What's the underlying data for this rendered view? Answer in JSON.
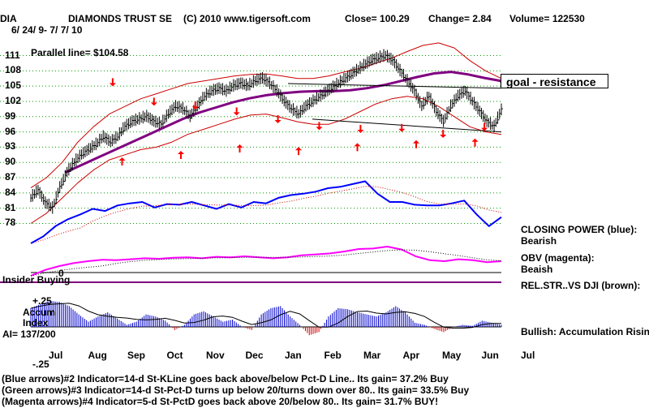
{
  "header": {
    "symbol": "DIA",
    "name": "DIAMONDS TRUST SE",
    "site": "(C) 2010 www.tigersoft.com",
    "close_label": "Close=",
    "close": "100.29",
    "change_label": "Change=",
    "change": "2.84",
    "volume_label": "Volume=",
    "volume": "122530",
    "date_range": "6/ 24/ 9- 7/ 7/ 10"
  },
  "parallel_line": "Parallel line= $104.58",
  "goal_label": "goal - resistance",
  "panel_labels": {
    "closing_power": "CLOSING POWER (blue):",
    "closing_power_state": "Bearish",
    "obv": "OBV (magenta):",
    "obv_state": "Beaish",
    "relstr": "REL.STR..VS DJI (brown):",
    "insider": "Insider Buying",
    "zero": "0",
    "accum_plus": "+.25",
    "accum_title1": "Accum",
    "accum_title2": "Index",
    "ai_value": "AI= 137/200",
    "accum_minus": "-.25",
    "bullish": "Bullish: Accumulation Rising"
  },
  "footer": [
    "(Blue arrows)#2 Indicator=14-d St-KLine goes back above/below Pct-D Line.. Its gain= 37.2% Buy",
    "(Green arrows)#3 Indicator=14-d St-Pct-D turns up below 20/turns down over 80.. Its gain= 33.5% Buy",
    "(Magenta arrows)#4 Indicator=5-d St-PctD goes back above 20/below 80.. Its gain= 31.7% BUY!"
  ],
  "colors": {
    "price": "#000000",
    "band": "#cc0000",
    "ma": "#800080",
    "closing_power": "#0000ff",
    "obv": "#ff00ff",
    "arrow": "#ff0000",
    "accum_pos": "#0000cc",
    "accum_neg": "#cc0000",
    "grid": "#009900",
    "insider": "#800080"
  },
  "chart_data": {
    "type": "line",
    "title": "DIAMONDS TRUST SE",
    "y_ticks": [
      111,
      108,
      105,
      102,
      99,
      96,
      93,
      90,
      87,
      84,
      81,
      78
    ],
    "ylim": [
      76,
      113
    ],
    "months": [
      "Jul",
      "Aug",
      "Sep",
      "Oct",
      "Nov",
      "Dec",
      "Jan",
      "Feb",
      "Mar",
      "Apr",
      "May",
      "Jun",
      "Jul"
    ],
    "price": [
      83.0,
      84.5,
      82.0,
      81.0,
      85.0,
      88.0,
      90.0,
      91.5,
      92.5,
      93.5,
      95.0,
      94.0,
      95.0,
      97.0,
      98.0,
      98.5,
      99.0,
      98.0,
      97.5,
      99.5,
      101.0,
      100.5,
      99.0,
      101.0,
      103.0,
      104.0,
      104.5,
      104.0,
      105.0,
      105.5,
      105.0,
      106.0,
      106.5,
      105.5,
      104.0,
      102.0,
      100.5,
      99.5,
      101.0,
      102.0,
      103.0,
      104.0,
      105.0,
      106.0,
      107.0,
      108.0,
      109.0,
      110.0,
      110.5,
      111.0,
      110.0,
      108.0,
      106.0,
      104.0,
      101.0,
      103.0,
      100.0,
      98.0,
      101.0,
      103.0,
      104.0,
      102.0,
      100.0,
      98.0,
      97.0,
      100.29
    ],
    "upper_band": [
      85.0,
      87.0,
      90.0,
      94.0,
      97.0,
      99.5,
      101.0,
      102.5,
      103.5,
      104.5,
      105.5,
      106.0,
      106.5,
      107.0,
      107.3,
      107.4,
      107.0,
      106.5,
      106.5,
      107.0,
      107.8,
      108.5,
      109.5,
      110.5,
      111.8,
      113.0,
      113.5,
      112.5,
      110.0,
      108.0,
      106.5
    ],
    "lower_band": [
      78.0,
      80.0,
      83.0,
      86.0,
      88.5,
      90.5,
      91.5,
      92.5,
      93.0,
      94.0,
      95.5,
      96.5,
      97.5,
      98.5,
      99.3,
      99.5,
      98.8,
      98.0,
      97.5,
      97.5,
      98.5,
      100.0,
      101.5,
      102.5,
      103.0,
      102.5,
      101.0,
      99.0,
      97.0,
      96.0,
      95.5
    ],
    "moving_average": [
      88.0,
      89.5,
      91.0,
      92.5,
      94.0,
      95.5,
      97.0,
      98.5,
      99.8,
      100.8,
      101.8,
      102.6,
      103.2,
      103.6,
      103.9,
      104.0,
      104.0,
      104.2,
      104.6,
      105.2,
      106.0,
      106.8,
      107.5,
      107.8,
      107.3,
      106.6,
      106.0
    ],
    "parallel_value": 104.58,
    "resistance_upper": [
      105.5,
      104.58
    ],
    "resistance_lower": [
      98.5,
      96.0
    ],
    "closing_power": [
      0.0,
      0.1,
      0.25,
      0.35,
      0.42,
      0.5,
      0.47,
      0.55,
      0.58,
      0.6,
      0.52,
      0.57,
      0.56,
      0.6,
      0.55,
      0.5,
      0.57,
      0.52,
      0.6,
      0.58,
      0.66,
      0.7,
      0.72,
      0.75,
      0.8,
      0.82,
      0.86,
      0.9,
      0.72,
      0.6,
      0.6,
      0.56,
      0.55,
      0.55,
      0.58,
      0.62,
      0.42,
      0.25,
      0.38
    ],
    "obv": [
      0.0,
      0.12,
      0.2,
      0.26,
      0.3,
      0.33,
      0.32,
      0.34,
      0.36,
      0.35,
      0.37,
      0.38,
      0.36,
      0.39,
      0.38,
      0.4,
      0.38,
      0.36,
      0.38,
      0.42,
      0.44,
      0.46,
      0.5,
      0.55,
      0.56,
      0.6,
      0.54,
      0.4,
      0.32,
      0.3,
      0.34,
      0.32,
      0.28,
      0.3
    ],
    "accum_index": [
      0.18,
      0.22,
      0.25,
      0.24,
      0.2,
      0.12,
      0.05,
      0.1,
      0.14,
      0.08,
      0.02,
      0.05,
      0.12,
      0.1,
      0.06,
      -0.03,
      0.02,
      0.12,
      0.15,
      0.1,
      0.05,
      0.07,
      0.0,
      -0.03,
      0.12,
      0.18,
      0.2,
      0.1,
      0.02,
      -0.08,
      -0.05,
      0.1,
      0.18,
      0.17,
      0.14,
      0.12,
      0.1,
      0.14,
      0.2,
      0.14,
      0.04,
      0.02,
      -0.02,
      -0.05,
      0.0,
      0.02,
      0.01,
      0.06,
      0.04,
      0.02
    ],
    "accum_ylim": [
      -0.25,
      0.25
    ],
    "sell_arrows": [
      [
        1,
        0.58
      ],
      [
        2,
        0.38
      ],
      [
        3,
        0.34
      ],
      [
        4,
        0.28
      ],
      [
        5,
        0.2
      ],
      [
        6,
        0.13
      ],
      [
        7,
        0.1
      ],
      [
        8,
        0.11
      ],
      [
        9,
        0.05
      ],
      [
        10,
        0.12
      ]
    ],
    "buy_arrows": [
      [
        1,
        0.4
      ],
      [
        2,
        0.6
      ],
      [
        3,
        0.8
      ],
      [
        4,
        0.72
      ],
      [
        5,
        0.84
      ],
      [
        6,
        0.93
      ],
      [
        7,
        0.98
      ]
    ]
  }
}
